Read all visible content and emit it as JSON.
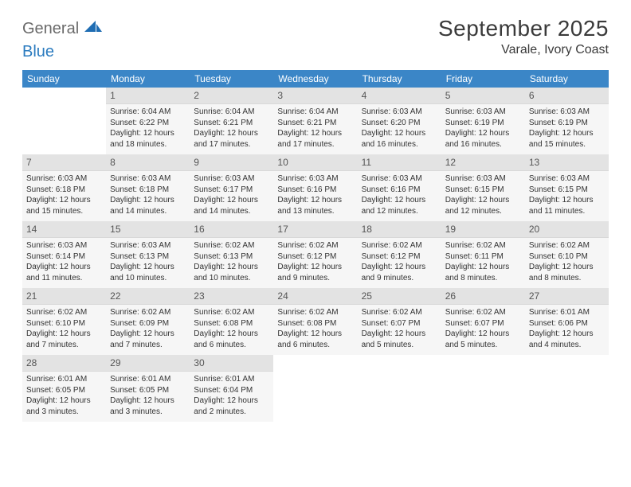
{
  "brand": {
    "general": "General",
    "blue": "Blue"
  },
  "header": {
    "month_title": "September 2025",
    "location": "Varale, Ivory Coast"
  },
  "colors": {
    "header_bg": "#3b86c7",
    "header_fg": "#ffffff",
    "daynum_bg": "#e3e3e3",
    "daybody_bg": "#f6f6f6",
    "page_bg": "#ffffff",
    "text": "#333333",
    "logo_gray": "#6a6a6a",
    "logo_blue": "#2b7bbf"
  },
  "daysOfWeek": [
    "Sunday",
    "Monday",
    "Tuesday",
    "Wednesday",
    "Thursday",
    "Friday",
    "Saturday"
  ],
  "leadingBlanks": 1,
  "days": [
    {
      "n": 1,
      "sunrise": "6:04 AM",
      "sunset": "6:22 PM",
      "daylight": "12 hours and 18 minutes."
    },
    {
      "n": 2,
      "sunrise": "6:04 AM",
      "sunset": "6:21 PM",
      "daylight": "12 hours and 17 minutes."
    },
    {
      "n": 3,
      "sunrise": "6:04 AM",
      "sunset": "6:21 PM",
      "daylight": "12 hours and 17 minutes."
    },
    {
      "n": 4,
      "sunrise": "6:03 AM",
      "sunset": "6:20 PM",
      "daylight": "12 hours and 16 minutes."
    },
    {
      "n": 5,
      "sunrise": "6:03 AM",
      "sunset": "6:19 PM",
      "daylight": "12 hours and 16 minutes."
    },
    {
      "n": 6,
      "sunrise": "6:03 AM",
      "sunset": "6:19 PM",
      "daylight": "12 hours and 15 minutes."
    },
    {
      "n": 7,
      "sunrise": "6:03 AM",
      "sunset": "6:18 PM",
      "daylight": "12 hours and 15 minutes."
    },
    {
      "n": 8,
      "sunrise": "6:03 AM",
      "sunset": "6:18 PM",
      "daylight": "12 hours and 14 minutes."
    },
    {
      "n": 9,
      "sunrise": "6:03 AM",
      "sunset": "6:17 PM",
      "daylight": "12 hours and 14 minutes."
    },
    {
      "n": 10,
      "sunrise": "6:03 AM",
      "sunset": "6:16 PM",
      "daylight": "12 hours and 13 minutes."
    },
    {
      "n": 11,
      "sunrise": "6:03 AM",
      "sunset": "6:16 PM",
      "daylight": "12 hours and 12 minutes."
    },
    {
      "n": 12,
      "sunrise": "6:03 AM",
      "sunset": "6:15 PM",
      "daylight": "12 hours and 12 minutes."
    },
    {
      "n": 13,
      "sunrise": "6:03 AM",
      "sunset": "6:15 PM",
      "daylight": "12 hours and 11 minutes."
    },
    {
      "n": 14,
      "sunrise": "6:03 AM",
      "sunset": "6:14 PM",
      "daylight": "12 hours and 11 minutes."
    },
    {
      "n": 15,
      "sunrise": "6:03 AM",
      "sunset": "6:13 PM",
      "daylight": "12 hours and 10 minutes."
    },
    {
      "n": 16,
      "sunrise": "6:02 AM",
      "sunset": "6:13 PM",
      "daylight": "12 hours and 10 minutes."
    },
    {
      "n": 17,
      "sunrise": "6:02 AM",
      "sunset": "6:12 PM",
      "daylight": "12 hours and 9 minutes."
    },
    {
      "n": 18,
      "sunrise": "6:02 AM",
      "sunset": "6:12 PM",
      "daylight": "12 hours and 9 minutes."
    },
    {
      "n": 19,
      "sunrise": "6:02 AM",
      "sunset": "6:11 PM",
      "daylight": "12 hours and 8 minutes."
    },
    {
      "n": 20,
      "sunrise": "6:02 AM",
      "sunset": "6:10 PM",
      "daylight": "12 hours and 8 minutes."
    },
    {
      "n": 21,
      "sunrise": "6:02 AM",
      "sunset": "6:10 PM",
      "daylight": "12 hours and 7 minutes."
    },
    {
      "n": 22,
      "sunrise": "6:02 AM",
      "sunset": "6:09 PM",
      "daylight": "12 hours and 7 minutes."
    },
    {
      "n": 23,
      "sunrise": "6:02 AM",
      "sunset": "6:08 PM",
      "daylight": "12 hours and 6 minutes."
    },
    {
      "n": 24,
      "sunrise": "6:02 AM",
      "sunset": "6:08 PM",
      "daylight": "12 hours and 6 minutes."
    },
    {
      "n": 25,
      "sunrise": "6:02 AM",
      "sunset": "6:07 PM",
      "daylight": "12 hours and 5 minutes."
    },
    {
      "n": 26,
      "sunrise": "6:02 AM",
      "sunset": "6:07 PM",
      "daylight": "12 hours and 5 minutes."
    },
    {
      "n": 27,
      "sunrise": "6:01 AM",
      "sunset": "6:06 PM",
      "daylight": "12 hours and 4 minutes."
    },
    {
      "n": 28,
      "sunrise": "6:01 AM",
      "sunset": "6:05 PM",
      "daylight": "12 hours and 3 minutes."
    },
    {
      "n": 29,
      "sunrise": "6:01 AM",
      "sunset": "6:05 PM",
      "daylight": "12 hours and 3 minutes."
    },
    {
      "n": 30,
      "sunrise": "6:01 AM",
      "sunset": "6:04 PM",
      "daylight": "12 hours and 2 minutes."
    }
  ],
  "labels": {
    "sunrise_prefix": "Sunrise: ",
    "sunset_prefix": "Sunset: ",
    "daylight_prefix": "Daylight: "
  }
}
